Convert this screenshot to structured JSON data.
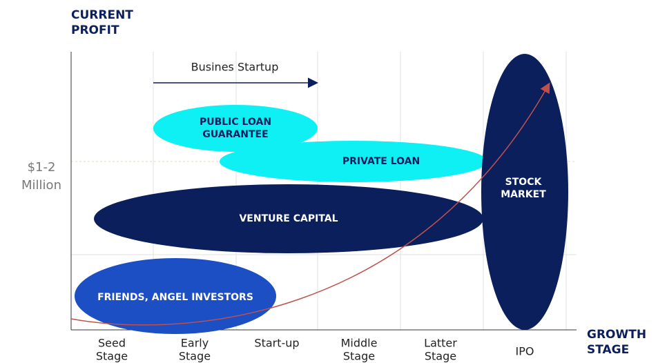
{
  "y_axis_label": [
    "CURRENT",
    "PROFIT"
  ],
  "x_axis_label": [
    "GROWTH",
    "STAGE"
  ],
  "y_marker": [
    "$1-2",
    "Million"
  ],
  "arrow_label": "Busines Startup",
  "stages": [
    [
      "Seed",
      "Stage"
    ],
    [
      "Early",
      "Stage"
    ],
    [
      "Start-up"
    ],
    [
      "Middle",
      "Stage"
    ],
    [
      "Latter",
      "Stage"
    ],
    [
      "IPO"
    ]
  ],
  "regions": [
    [
      "PUBLIC LOAN",
      "GUARANTEE"
    ],
    [
      "PRIVATE LOAN"
    ],
    [
      "VENTURE CAPITAL"
    ],
    [
      "FRIENDS, ANGEL INVESTORS"
    ],
    [
      "STOCK",
      "MARKET"
    ]
  ]
}
